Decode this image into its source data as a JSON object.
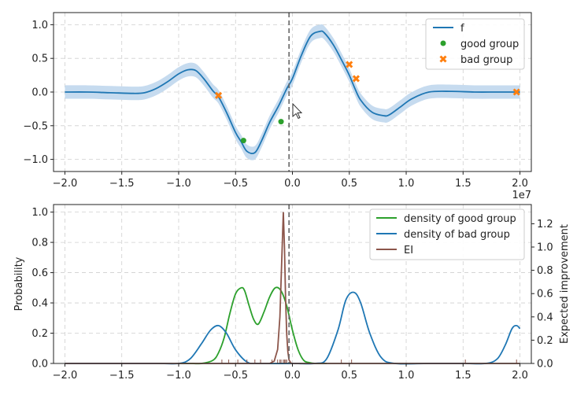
{
  "chart_data": [
    {
      "type": "line",
      "xlim": [
        -2.1,
        2.1
      ],
      "ylim": [
        -1.18,
        1.18
      ],
      "x_ticks": [
        -2.0,
        -1.5,
        -1.0,
        -0.5,
        0.0,
        0.5,
        1.0,
        1.5,
        2.0
      ],
      "x_tick_labels": [
        "−2.0",
        "−1.5",
        "−1.0",
        "−0.5",
        "0.0",
        "0.5",
        "1.0",
        "1.5",
        "2.0"
      ],
      "y_ticks": [
        -1.0,
        -0.5,
        0.0,
        0.5,
        1.0
      ],
      "y_tick_labels": [
        "−1.0",
        "−0.5",
        "0.0",
        "0.5",
        "1.0"
      ],
      "x_offset_label": "1e7",
      "grid": true,
      "legend": {
        "position": "top-right",
        "entries": [
          "f",
          "good group",
          "bad group"
        ]
      },
      "series": [
        {
          "name": "f",
          "kind": "line",
          "color": "#1f77b4",
          "band_color": "#c6dbef",
          "band_halfwidth": 0.1,
          "x": [
            -2.0,
            -1.8,
            -1.6,
            -1.4,
            -1.3,
            -1.2,
            -1.1,
            -1.0,
            -0.92,
            -0.85,
            -0.78,
            -0.7,
            -0.65,
            -0.58,
            -0.5,
            -0.45,
            -0.4,
            -0.33,
            -0.27,
            -0.2,
            -0.12,
            -0.05,
            0.0,
            0.08,
            0.16,
            0.24,
            0.28,
            0.36,
            0.44,
            0.5,
            0.55,
            0.6,
            0.7,
            0.8,
            0.85,
            0.95,
            1.05,
            1.2,
            1.4,
            1.6,
            1.8,
            2.0
          ],
          "y": [
            0.0,
            0.0,
            -0.01,
            -0.02,
            -0.01,
            0.05,
            0.15,
            0.27,
            0.33,
            0.32,
            0.2,
            0.02,
            -0.07,
            -0.3,
            -0.6,
            -0.74,
            -0.88,
            -0.9,
            -0.72,
            -0.45,
            -0.2,
            0.05,
            0.2,
            0.55,
            0.83,
            0.9,
            0.88,
            0.7,
            0.45,
            0.25,
            0.05,
            -0.12,
            -0.3,
            -0.35,
            -0.34,
            -0.22,
            -0.1,
            0.0,
            0.01,
            0.0,
            0.0,
            0.0
          ]
        },
        {
          "name": "good group",
          "kind": "scatter",
          "marker": "circle",
          "color": "#2ca02c",
          "x": [
            -0.43,
            -0.1
          ],
          "y": [
            -0.72,
            -0.44
          ]
        },
        {
          "name": "bad group",
          "kind": "scatter",
          "marker": "x",
          "color": "#ff7f0e",
          "x": [
            -0.65,
            0.5,
            0.56,
            1.97
          ],
          "y": [
            -0.05,
            0.41,
            0.2,
            0.0
          ]
        }
      ],
      "vline": {
        "x": -0.03,
        "color": "#666666",
        "style": "dashed"
      }
    },
    {
      "type": "line",
      "xlim": [
        -2.1,
        2.1
      ],
      "ylim": [
        0.0,
        1.05
      ],
      "y2lim": [
        0.0,
        1.365
      ],
      "x_ticks": [
        -2.0,
        -1.5,
        -1.0,
        -0.5,
        0.0,
        0.5,
        1.0,
        1.5,
        2.0
      ],
      "x_tick_labels": [
        "−2.0",
        "−1.5",
        "−1.0",
        "−0.5",
        "0.0",
        "0.5",
        "1.0",
        "1.5",
        "2.0"
      ],
      "y_ticks": [
        0.0,
        0.2,
        0.4,
        0.6,
        0.8,
        1.0
      ],
      "y_tick_labels": [
        "0.0",
        "0.2",
        "0.4",
        "0.6",
        "0.8",
        "1.0"
      ],
      "y2_ticks": [
        0.0,
        0.2,
        0.4,
        0.6,
        0.8,
        1.0,
        1.2
      ],
      "y2_tick_labels": [
        "0.0",
        "0.2",
        "0.4",
        "0.6",
        "0.8",
        "1.0",
        "1.2"
      ],
      "ylabel": "Probability",
      "y2label": "Expected improvement",
      "grid": true,
      "legend": {
        "position": "top-right",
        "entries": [
          "density of good group",
          "density of bad group",
          "EI"
        ]
      },
      "series": [
        {
          "name": "density of good group",
          "color": "#2ca02c",
          "x": [
            -1.0,
            -0.9,
            -0.8,
            -0.7,
            -0.65,
            -0.6,
            -0.55,
            -0.5,
            -0.45,
            -0.42,
            -0.38,
            -0.34,
            -0.3,
            -0.25,
            -0.2,
            -0.15,
            -0.1,
            -0.05,
            0.0,
            0.05,
            0.1,
            0.15,
            0.2,
            0.3
          ],
          "y": [
            0.0,
            0.0,
            0.0,
            0.02,
            0.07,
            0.17,
            0.33,
            0.46,
            0.5,
            0.48,
            0.38,
            0.29,
            0.26,
            0.34,
            0.44,
            0.5,
            0.48,
            0.38,
            0.22,
            0.09,
            0.02,
            0.005,
            0.0,
            0.0
          ]
        },
        {
          "name": "density of bad group",
          "color": "#1f77b4",
          "x": [
            -2.0,
            -1.2,
            -1.0,
            -0.9,
            -0.8,
            -0.72,
            -0.65,
            -0.58,
            -0.5,
            -0.4,
            -0.3,
            0.0,
            0.2,
            0.3,
            0.4,
            0.47,
            0.54,
            0.6,
            0.68,
            0.78,
            0.9,
            1.2,
            1.5,
            1.7,
            1.8,
            1.87,
            1.93,
            1.97,
            2.0
          ],
          "y": [
            0.0,
            0.0,
            0.0,
            0.03,
            0.13,
            0.22,
            0.25,
            0.2,
            0.09,
            0.01,
            0.0,
            0.0,
            0.0,
            0.03,
            0.22,
            0.42,
            0.47,
            0.4,
            0.2,
            0.04,
            0.0,
            0.0,
            0.0,
            0.0,
            0.03,
            0.12,
            0.23,
            0.25,
            0.23
          ]
        },
        {
          "name": "EI",
          "color": "#8c564b",
          "axis": "right",
          "x": [
            -2.0,
            -0.3,
            -0.2,
            -0.16,
            -0.13,
            -0.11,
            -0.1,
            -0.09,
            -0.08,
            -0.07,
            -0.06,
            -0.05,
            -0.04,
            -0.03,
            -0.01,
            0.1,
            2.0
          ],
          "y": [
            0.0,
            0.0,
            0.0,
            0.02,
            0.12,
            0.4,
            0.7,
            1.0,
            1.3,
            1.0,
            0.55,
            0.25,
            0.1,
            0.03,
            0.0,
            0.0,
            0.0
          ]
        }
      ],
      "rug": {
        "color": "#8c564b",
        "x": [
          -0.62,
          -0.56,
          -0.48,
          -0.4,
          -0.33,
          -0.28,
          -0.18,
          -0.13,
          -0.11,
          -0.1,
          -0.08,
          -0.07,
          -0.06,
          -0.05,
          0.43,
          0.52,
          1.52,
          1.97
        ]
      },
      "vline": {
        "x": -0.03,
        "color": "#666666",
        "style": "dashed"
      }
    }
  ]
}
